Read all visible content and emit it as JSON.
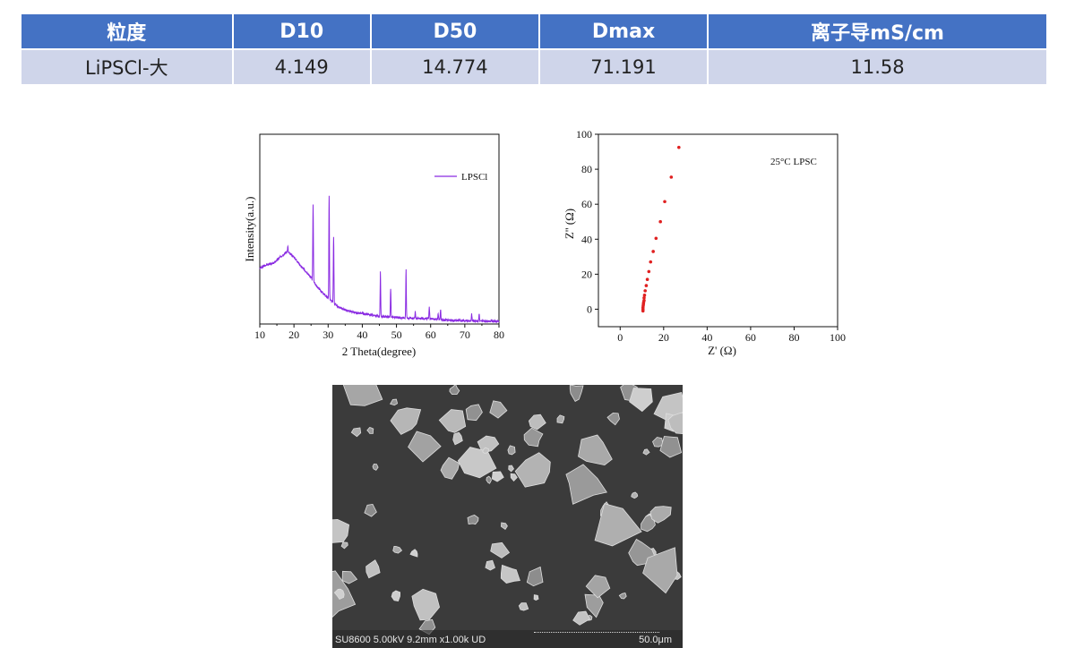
{
  "table": {
    "headers": [
      "粒度",
      "D10",
      "D50",
      "Dmax",
      "离子导mS/cm"
    ],
    "rows": [
      [
        "LiPSCl-大",
        "4.149",
        "14.774",
        "71.191",
        "11.58"
      ]
    ]
  },
  "chart_data": [
    {
      "type": "line",
      "title": "",
      "xlabel": "2 Theta(degree)",
      "ylabel": "Intensity(a.u.)",
      "xlim": [
        10,
        80
      ],
      "ylim": [
        0,
        147
      ],
      "xticks": [
        "10",
        "20",
        "30",
        "40",
        "50",
        "60",
        "70",
        "80"
      ],
      "legend": {
        "label": "LPSCl",
        "position": "top-right"
      },
      "color": "#8a2be2",
      "background": [
        [
          10,
          43
        ],
        [
          12,
          46
        ],
        [
          14,
          47
        ],
        [
          16,
          52
        ],
        [
          18,
          56
        ],
        [
          20,
          52
        ],
        [
          22,
          45
        ],
        [
          25,
          36
        ],
        [
          27,
          28
        ],
        [
          30,
          20
        ],
        [
          33,
          13
        ],
        [
          36,
          10
        ],
        [
          40,
          8
        ],
        [
          45,
          6
        ],
        [
          50,
          5
        ],
        [
          55,
          4.5
        ],
        [
          60,
          4
        ],
        [
          65,
          3
        ],
        [
          70,
          2.5
        ],
        [
          80,
          2
        ]
      ],
      "peaks": [
        [
          15.8,
          47
        ],
        [
          18.2,
          60
        ],
        [
          25.6,
          92
        ],
        [
          30.3,
          100
        ],
        [
          31.6,
          68
        ],
        [
          40.1,
          9
        ],
        [
          45.3,
          40
        ],
        [
          48.3,
          27
        ],
        [
          52.8,
          43
        ],
        [
          55.5,
          10
        ],
        [
          59.6,
          13
        ],
        [
          62.2,
          8
        ],
        [
          62.9,
          11
        ],
        [
          68.5,
          4
        ],
        [
          72.0,
          8
        ],
        [
          74.2,
          8
        ],
        [
          77.8,
          3
        ]
      ]
    },
    {
      "type": "scatter",
      "xlabel": "Z' (Ω)",
      "ylabel": "Z'' (Ω)",
      "xlim": [
        -10,
        100
      ],
      "ylim": [
        -10,
        100
      ],
      "xticks": [
        "0",
        "20",
        "40",
        "60",
        "80",
        "100"
      ],
      "yticks": [
        "0",
        "20",
        "40",
        "60",
        "80",
        "100"
      ],
      "annotation": "25°C LPSC",
      "color": "#e02020",
      "points": [
        [
          10.5,
          -1
        ],
        [
          10.5,
          0
        ],
        [
          10.5,
          1
        ],
        [
          10.6,
          2
        ],
        [
          10.7,
          3
        ],
        [
          10.8,
          4
        ],
        [
          11,
          5
        ],
        [
          11,
          6.5
        ],
        [
          11.2,
          8
        ],
        [
          11.5,
          10.5
        ],
        [
          12,
          13.5
        ],
        [
          12.5,
          17
        ],
        [
          13.2,
          21.5
        ],
        [
          14,
          27
        ],
        [
          15.2,
          33
        ],
        [
          16.5,
          40.5
        ],
        [
          18.5,
          50
        ],
        [
          20.5,
          61.5
        ],
        [
          23.5,
          75.5
        ],
        [
          27,
          92.5
        ]
      ]
    }
  ],
  "sem": {
    "info": "SU8600 5.00kV 9.2mm x1.00k UD",
    "scale": "50.0μm"
  }
}
